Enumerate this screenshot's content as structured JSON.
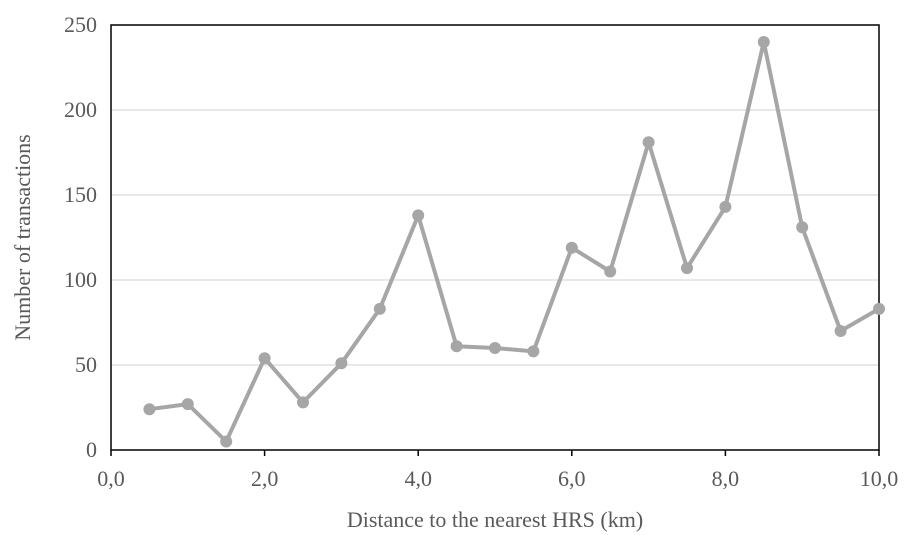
{
  "chart_data": {
    "type": "line",
    "title": "",
    "xlabel": "Distance to the nearest HRS (km)",
    "ylabel": "Number of transactions",
    "xlim": [
      0,
      10
    ],
    "ylim": [
      0,
      250
    ],
    "x_ticks": [
      "0,0",
      "2,0",
      "4,0",
      "6,0",
      "8,0",
      "10,0"
    ],
    "y_ticks": [
      "0",
      "50",
      "100",
      "150",
      "200",
      "250"
    ],
    "grid": "horizontal",
    "legend": "none",
    "series": [
      {
        "color": "#a6a6a6",
        "x": [
          0.5,
          1.0,
          1.5,
          2.0,
          2.5,
          3.0,
          3.5,
          4.0,
          4.5,
          5.0,
          5.5,
          6.0,
          6.5,
          7.0,
          7.5,
          8.0,
          8.5,
          9.0,
          9.5,
          10.0
        ],
        "y": [
          24,
          27,
          5,
          54,
          28,
          51,
          83,
          138,
          61,
          60,
          58,
          119,
          105,
          181,
          107,
          143,
          240,
          131,
          70,
          83
        ]
      }
    ]
  }
}
